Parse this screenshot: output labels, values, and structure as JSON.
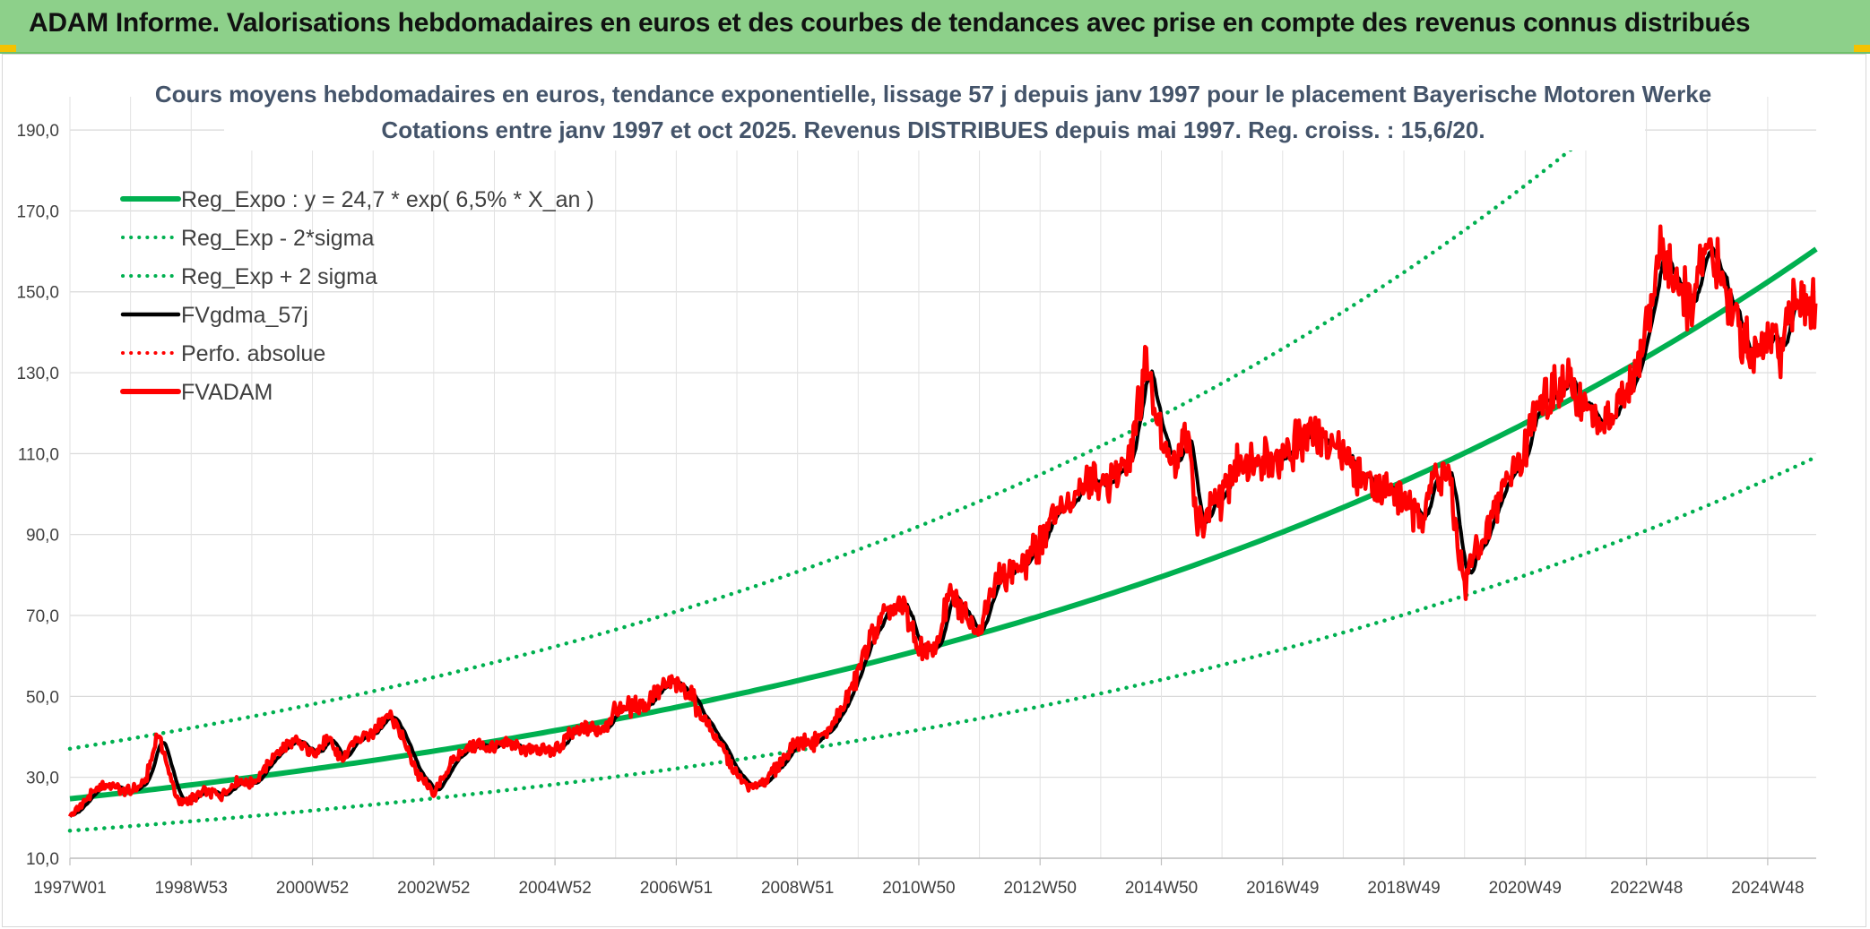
{
  "header": {
    "title": "ADAM Informe. Valorisations hebdomadaires en euros et des courbes de tendances avec prise en compte des revenus connus distribués"
  },
  "chart_data": {
    "type": "line",
    "title": "Cours moyens hebdomadaires en euros, tendance exponentielle, lissage 57 j depuis janv 1997 pour le placement Bayerische Motoren Werke",
    "subtitle": "Cotations entre janv 1997 et oct 2025. Revenus DISTRIBUES depuis mai 1997. Reg. croiss. : 15,6/20.",
    "xlabel": "",
    "ylabel": "",
    "ylim": [
      10,
      196
    ],
    "yticks": [
      "10,0",
      "30,0",
      "50,0",
      "70,0",
      "90,0",
      "110,0",
      "130,0",
      "150,0",
      "170,0",
      "190,0"
    ],
    "xlim": [
      1997.0,
      2025.8
    ],
    "xticks": [
      {
        "label": "1997W01",
        "x": 1997.0
      },
      {
        "label": "1998W53",
        "x": 1999.0
      },
      {
        "label": "2000W52",
        "x": 2001.0
      },
      {
        "label": "2002W52",
        "x": 2003.0
      },
      {
        "label": "2004W52",
        "x": 2005.0
      },
      {
        "label": "2006W51",
        "x": 2007.0
      },
      {
        "label": "2008W51",
        "x": 2009.0
      },
      {
        "label": "2010W50",
        "x": 2011.0
      },
      {
        "label": "2012W50",
        "x": 2013.0
      },
      {
        "label": "2014W50",
        "x": 2015.0
      },
      {
        "label": "2016W49",
        "x": 2017.0
      },
      {
        "label": "2018W49",
        "x": 2019.0
      },
      {
        "label": "2020W49",
        "x": 2021.0
      },
      {
        "label": "2022W48",
        "x": 2023.0
      },
      {
        "label": "2024W48",
        "x": 2025.0
      }
    ],
    "grid": true,
    "legend_position": "top-left",
    "regression": {
      "a": 24.7,
      "rate": 0.065,
      "sigma_factor_low": 0.68,
      "sigma_factor_high": 1.5
    },
    "series": [
      {
        "name": "Reg_Expo : y = 24,7 * exp( 6,5% *  X_an )",
        "color": "#00b050",
        "style": "solid",
        "kind": "reg"
      },
      {
        "name": "Reg_Exp - 2*sigma",
        "color": "#00b050",
        "style": "dotted",
        "kind": "reg_low"
      },
      {
        "name": "Reg_Exp + 2 sigma",
        "color": "#00b050",
        "style": "dotted",
        "kind": "reg_high"
      },
      {
        "name": "FVgdma_57j",
        "color": "#000000",
        "style": "solid",
        "kind": "smooth"
      },
      {
        "name": "Perfo. absolue",
        "color": "#ff0000",
        "style": "dotted",
        "kind": "none"
      },
      {
        "name": "FVADAM",
        "color": "#ff0000",
        "style": "solid",
        "kind": "price",
        "x": [
          1997.0,
          1997.25,
          1997.5,
          1997.75,
          1998.0,
          1998.25,
          1998.45,
          1998.6,
          1998.8,
          1999.0,
          1999.25,
          1999.5,
          1999.75,
          2000.0,
          2000.25,
          2000.5,
          2000.75,
          2001.0,
          2001.25,
          2001.5,
          2001.75,
          2002.0,
          2002.25,
          2002.5,
          2002.75,
          2003.0,
          2003.25,
          2003.5,
          2003.75,
          2004.0,
          2004.25,
          2004.5,
          2004.75,
          2005.0,
          2005.25,
          2005.5,
          2005.75,
          2006.0,
          2006.25,
          2006.5,
          2006.75,
          2007.0,
          2007.25,
          2007.5,
          2007.75,
          2008.0,
          2008.25,
          2008.5,
          2008.75,
          2009.0,
          2009.25,
          2009.5,
          2009.75,
          2010.0,
          2010.25,
          2010.5,
          2010.75,
          2011.0,
          2011.25,
          2011.5,
          2011.75,
          2012.0,
          2012.25,
          2012.5,
          2012.75,
          2013.0,
          2013.25,
          2013.5,
          2013.75,
          2014.0,
          2014.25,
          2014.5,
          2014.75,
          2015.0,
          2015.2,
          2015.4,
          2015.6,
          2015.8,
          2016.0,
          2016.25,
          2016.5,
          2016.75,
          2017.0,
          2017.25,
          2017.5,
          2017.75,
          2018.0,
          2018.25,
          2018.5,
          2018.75,
          2019.0,
          2019.25,
          2019.5,
          2019.75,
          2020.0,
          2020.15,
          2020.3,
          2020.5,
          2020.75,
          2021.0,
          2021.25,
          2021.5,
          2021.75,
          2022.0,
          2022.25,
          2022.5,
          2022.75,
          2023.0,
          2023.25,
          2023.5,
          2023.75,
          2024.0,
          2024.25,
          2024.5,
          2024.75,
          2025.0,
          2025.25,
          2025.5,
          2025.8
        ],
        "values": [
          20.5,
          24.0,
          28.0,
          27.5,
          26.5,
          29.0,
          41.0,
          33.0,
          23.5,
          24.5,
          26.5,
          25.5,
          29.0,
          28.5,
          33.0,
          37.5,
          38.5,
          36.5,
          39.0,
          34.0,
          40.0,
          41.5,
          46.5,
          39.0,
          30.5,
          26.0,
          32.5,
          37.5,
          38.0,
          37.5,
          38.0,
          37.0,
          36.5,
          36.5,
          40.5,
          42.0,
          41.5,
          46.5,
          47.5,
          48.0,
          52.0,
          53.5,
          50.0,
          43.5,
          37.5,
          30.5,
          27.5,
          29.5,
          34.0,
          39.0,
          38.5,
          41.0,
          47.5,
          55.5,
          66.0,
          70.5,
          72.5,
          61.5,
          60.5,
          75.0,
          70.5,
          67.5,
          78.5,
          81.0,
          82.0,
          88.0,
          96.5,
          97.0,
          103.0,
          102.5,
          105.0,
          111.5,
          133.0,
          115.5,
          105.5,
          116.5,
          92.0,
          95.5,
          99.5,
          107.5,
          108.0,
          110.5,
          108.5,
          113.5,
          114.5,
          113.5,
          111.0,
          105.0,
          102.0,
          100.5,
          98.0,
          93.5,
          104.5,
          104.0,
          75.0,
          86.0,
          87.5,
          96.0,
          105.5,
          111.5,
          124.5,
          125.0,
          126.5,
          122.0,
          116.5,
          121.0,
          125.0,
          143.0,
          160.0,
          152.0,
          146.0,
          162.0,
          155.0,
          140.0,
          134.0,
          137.5,
          136.0,
          150.0,
          145.0
        ]
      }
    ]
  }
}
